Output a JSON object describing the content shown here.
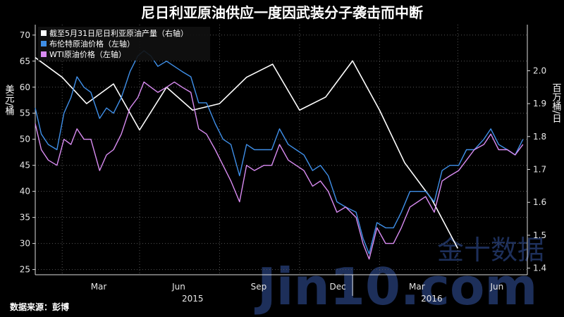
{
  "chart_data": {
    "type": "line",
    "title": "尼日利亚原油供应一度因武装分子袭击而中断",
    "ylabel_left": "美元/桶",
    "ylabel_right": "百万桶/日",
    "ylim_left": [
      24,
      72
    ],
    "ylim_right": [
      1.38,
      2.14
    ],
    "left_ticks": [
      25,
      30,
      35,
      40,
      45,
      50,
      55,
      60,
      65,
      70
    ],
    "right_ticks": [
      1.4,
      1.5,
      1.6,
      1.7,
      1.8,
      1.9,
      2.0
    ],
    "x_ticks": [
      "Mar",
      "Jun",
      "Sep",
      "Dec",
      "Mar",
      "Jun"
    ],
    "x_year_labels": [
      "2015",
      "2016"
    ],
    "x_range": [
      "2015-01-01",
      "2016-07-20"
    ],
    "legend": [
      {
        "label": "截至5月31日尼日利亚原油产量（右轴）",
        "color": "#ffffff"
      },
      {
        "label": "布伦特原油价格（左轴）",
        "color": "#3f8fe8"
      },
      {
        "label": "WTI原油价格（左轴）",
        "color": "#d98cf2"
      }
    ],
    "series": [
      {
        "name": "截至5月31日尼日利亚原油产量（右轴）",
        "axis": "right",
        "color": "#ffffff",
        "points": [
          [
            "2015-01-01",
            2.04
          ],
          [
            "2015-02-01",
            1.98
          ],
          [
            "2015-03-01",
            1.9
          ],
          [
            "2015-04-01",
            1.96
          ],
          [
            "2015-05-01",
            1.82
          ],
          [
            "2015-06-01",
            1.95
          ],
          [
            "2015-07-01",
            1.88
          ],
          [
            "2015-08-01",
            1.9
          ],
          [
            "2015-09-01",
            1.98
          ],
          [
            "2015-10-01",
            2.02
          ],
          [
            "2015-11-01",
            1.88
          ],
          [
            "2015-12-01",
            1.92
          ],
          [
            "2016-01-01",
            2.03
          ],
          [
            "2016-02-01",
            1.88
          ],
          [
            "2016-03-01",
            1.72
          ],
          [
            "2016-04-01",
            1.61
          ],
          [
            "2016-05-01",
            1.46
          ]
        ]
      },
      {
        "name": "布伦特原油价格（左轴）",
        "axis": "left",
        "color": "#3f8fe8",
        "points": [
          [
            "2015-01-01",
            56
          ],
          [
            "2015-01-08",
            51
          ],
          [
            "2015-01-16",
            49
          ],
          [
            "2015-01-26",
            48
          ],
          [
            "2015-02-03",
            55
          ],
          [
            "2015-02-11",
            58
          ],
          [
            "2015-02-18",
            62
          ],
          [
            "2015-02-26",
            60
          ],
          [
            "2015-03-06",
            59
          ],
          [
            "2015-03-16",
            54
          ],
          [
            "2015-03-24",
            56
          ],
          [
            "2015-04-01",
            55
          ],
          [
            "2015-04-10",
            58
          ],
          [
            "2015-04-20",
            63
          ],
          [
            "2015-04-29",
            66
          ],
          [
            "2015-05-06",
            67
          ],
          [
            "2015-05-14",
            66
          ],
          [
            "2015-05-22",
            64
          ],
          [
            "2015-06-01",
            65
          ],
          [
            "2015-06-10",
            64
          ],
          [
            "2015-06-19",
            63
          ],
          [
            "2015-06-29",
            62
          ],
          [
            "2015-07-08",
            57
          ],
          [
            "2015-07-17",
            57
          ],
          [
            "2015-07-27",
            53
          ],
          [
            "2015-08-05",
            50
          ],
          [
            "2015-08-14",
            49
          ],
          [
            "2015-08-24",
            43
          ],
          [
            "2015-09-01",
            49
          ],
          [
            "2015-09-10",
            48
          ],
          [
            "2015-09-21",
            48
          ],
          [
            "2015-09-30",
            48
          ],
          [
            "2015-10-09",
            52
          ],
          [
            "2015-10-19",
            49
          ],
          [
            "2015-10-28",
            48
          ],
          [
            "2015-11-06",
            47
          ],
          [
            "2015-11-16",
            44
          ],
          [
            "2015-11-25",
            45
          ],
          [
            "2015-12-04",
            43
          ],
          [
            "2015-12-14",
            38
          ],
          [
            "2015-12-24",
            37
          ],
          [
            "2016-01-05",
            36
          ],
          [
            "2016-01-13",
            31
          ],
          [
            "2016-01-20",
            28
          ],
          [
            "2016-01-29",
            34
          ],
          [
            "2016-02-08",
            33
          ],
          [
            "2016-02-17",
            33
          ],
          [
            "2016-02-26",
            36
          ],
          [
            "2016-03-07",
            40
          ],
          [
            "2016-03-16",
            40
          ],
          [
            "2016-03-25",
            40
          ],
          [
            "2016-04-04",
            38
          ],
          [
            "2016-04-13",
            44
          ],
          [
            "2016-04-22",
            45
          ],
          [
            "2016-05-02",
            45
          ],
          [
            "2016-05-11",
            48
          ],
          [
            "2016-05-20",
            48
          ],
          [
            "2016-05-31",
            50
          ],
          [
            "2016-06-08",
            52
          ],
          [
            "2016-06-17",
            49
          ],
          [
            "2016-06-27",
            48
          ],
          [
            "2016-07-06",
            47
          ],
          [
            "2016-07-15",
            50
          ]
        ]
      },
      {
        "name": "WTI原油价格（左轴）",
        "axis": "left",
        "color": "#d98cf2",
        "points": [
          [
            "2015-01-01",
            53
          ],
          [
            "2015-01-08",
            48
          ],
          [
            "2015-01-16",
            46
          ],
          [
            "2015-01-26",
            45
          ],
          [
            "2015-02-03",
            50
          ],
          [
            "2015-02-11",
            49
          ],
          [
            "2015-02-18",
            52
          ],
          [
            "2015-02-26",
            50
          ],
          [
            "2015-03-06",
            50
          ],
          [
            "2015-03-16",
            44
          ],
          [
            "2015-03-24",
            47
          ],
          [
            "2015-04-01",
            48
          ],
          [
            "2015-04-10",
            51
          ],
          [
            "2015-04-20",
            56
          ],
          [
            "2015-04-29",
            58
          ],
          [
            "2015-05-06",
            61
          ],
          [
            "2015-05-14",
            60
          ],
          [
            "2015-05-22",
            59
          ],
          [
            "2015-06-01",
            60
          ],
          [
            "2015-06-10",
            61
          ],
          [
            "2015-06-19",
            60
          ],
          [
            "2015-06-29",
            59
          ],
          [
            "2015-07-08",
            52
          ],
          [
            "2015-07-17",
            51
          ],
          [
            "2015-07-27",
            48
          ],
          [
            "2015-08-05",
            45
          ],
          [
            "2015-08-14",
            42
          ],
          [
            "2015-08-24",
            38
          ],
          [
            "2015-09-01",
            45
          ],
          [
            "2015-09-10",
            44
          ],
          [
            "2015-09-21",
            45
          ],
          [
            "2015-09-30",
            45
          ],
          [
            "2015-10-09",
            49
          ],
          [
            "2015-10-19",
            46
          ],
          [
            "2015-10-28",
            45
          ],
          [
            "2015-11-06",
            44
          ],
          [
            "2015-11-16",
            41
          ],
          [
            "2015-11-25",
            42
          ],
          [
            "2015-12-04",
            40
          ],
          [
            "2015-12-14",
            36
          ],
          [
            "2015-12-24",
            37
          ],
          [
            "2016-01-05",
            35
          ],
          [
            "2016-01-13",
            30
          ],
          [
            "2016-01-20",
            27
          ],
          [
            "2016-01-29",
            33
          ],
          [
            "2016-02-08",
            30
          ],
          [
            "2016-02-17",
            30
          ],
          [
            "2016-02-26",
            33
          ],
          [
            "2016-03-07",
            37
          ],
          [
            "2016-03-16",
            38
          ],
          [
            "2016-03-25",
            39
          ],
          [
            "2016-04-04",
            36
          ],
          [
            "2016-04-13",
            42
          ],
          [
            "2016-04-22",
            43
          ],
          [
            "2016-05-02",
            44
          ],
          [
            "2016-05-11",
            46
          ],
          [
            "2016-05-20",
            48
          ],
          [
            "2016-05-31",
            49
          ],
          [
            "2016-06-08",
            51
          ],
          [
            "2016-06-17",
            48
          ],
          [
            "2016-06-27",
            48
          ],
          [
            "2016-07-06",
            47
          ],
          [
            "2016-07-15",
            49
          ]
        ]
      }
    ]
  },
  "source": "数据来源：彭博",
  "watermark": {
    "main": "Jin10.com",
    "sub": "金十数据"
  }
}
